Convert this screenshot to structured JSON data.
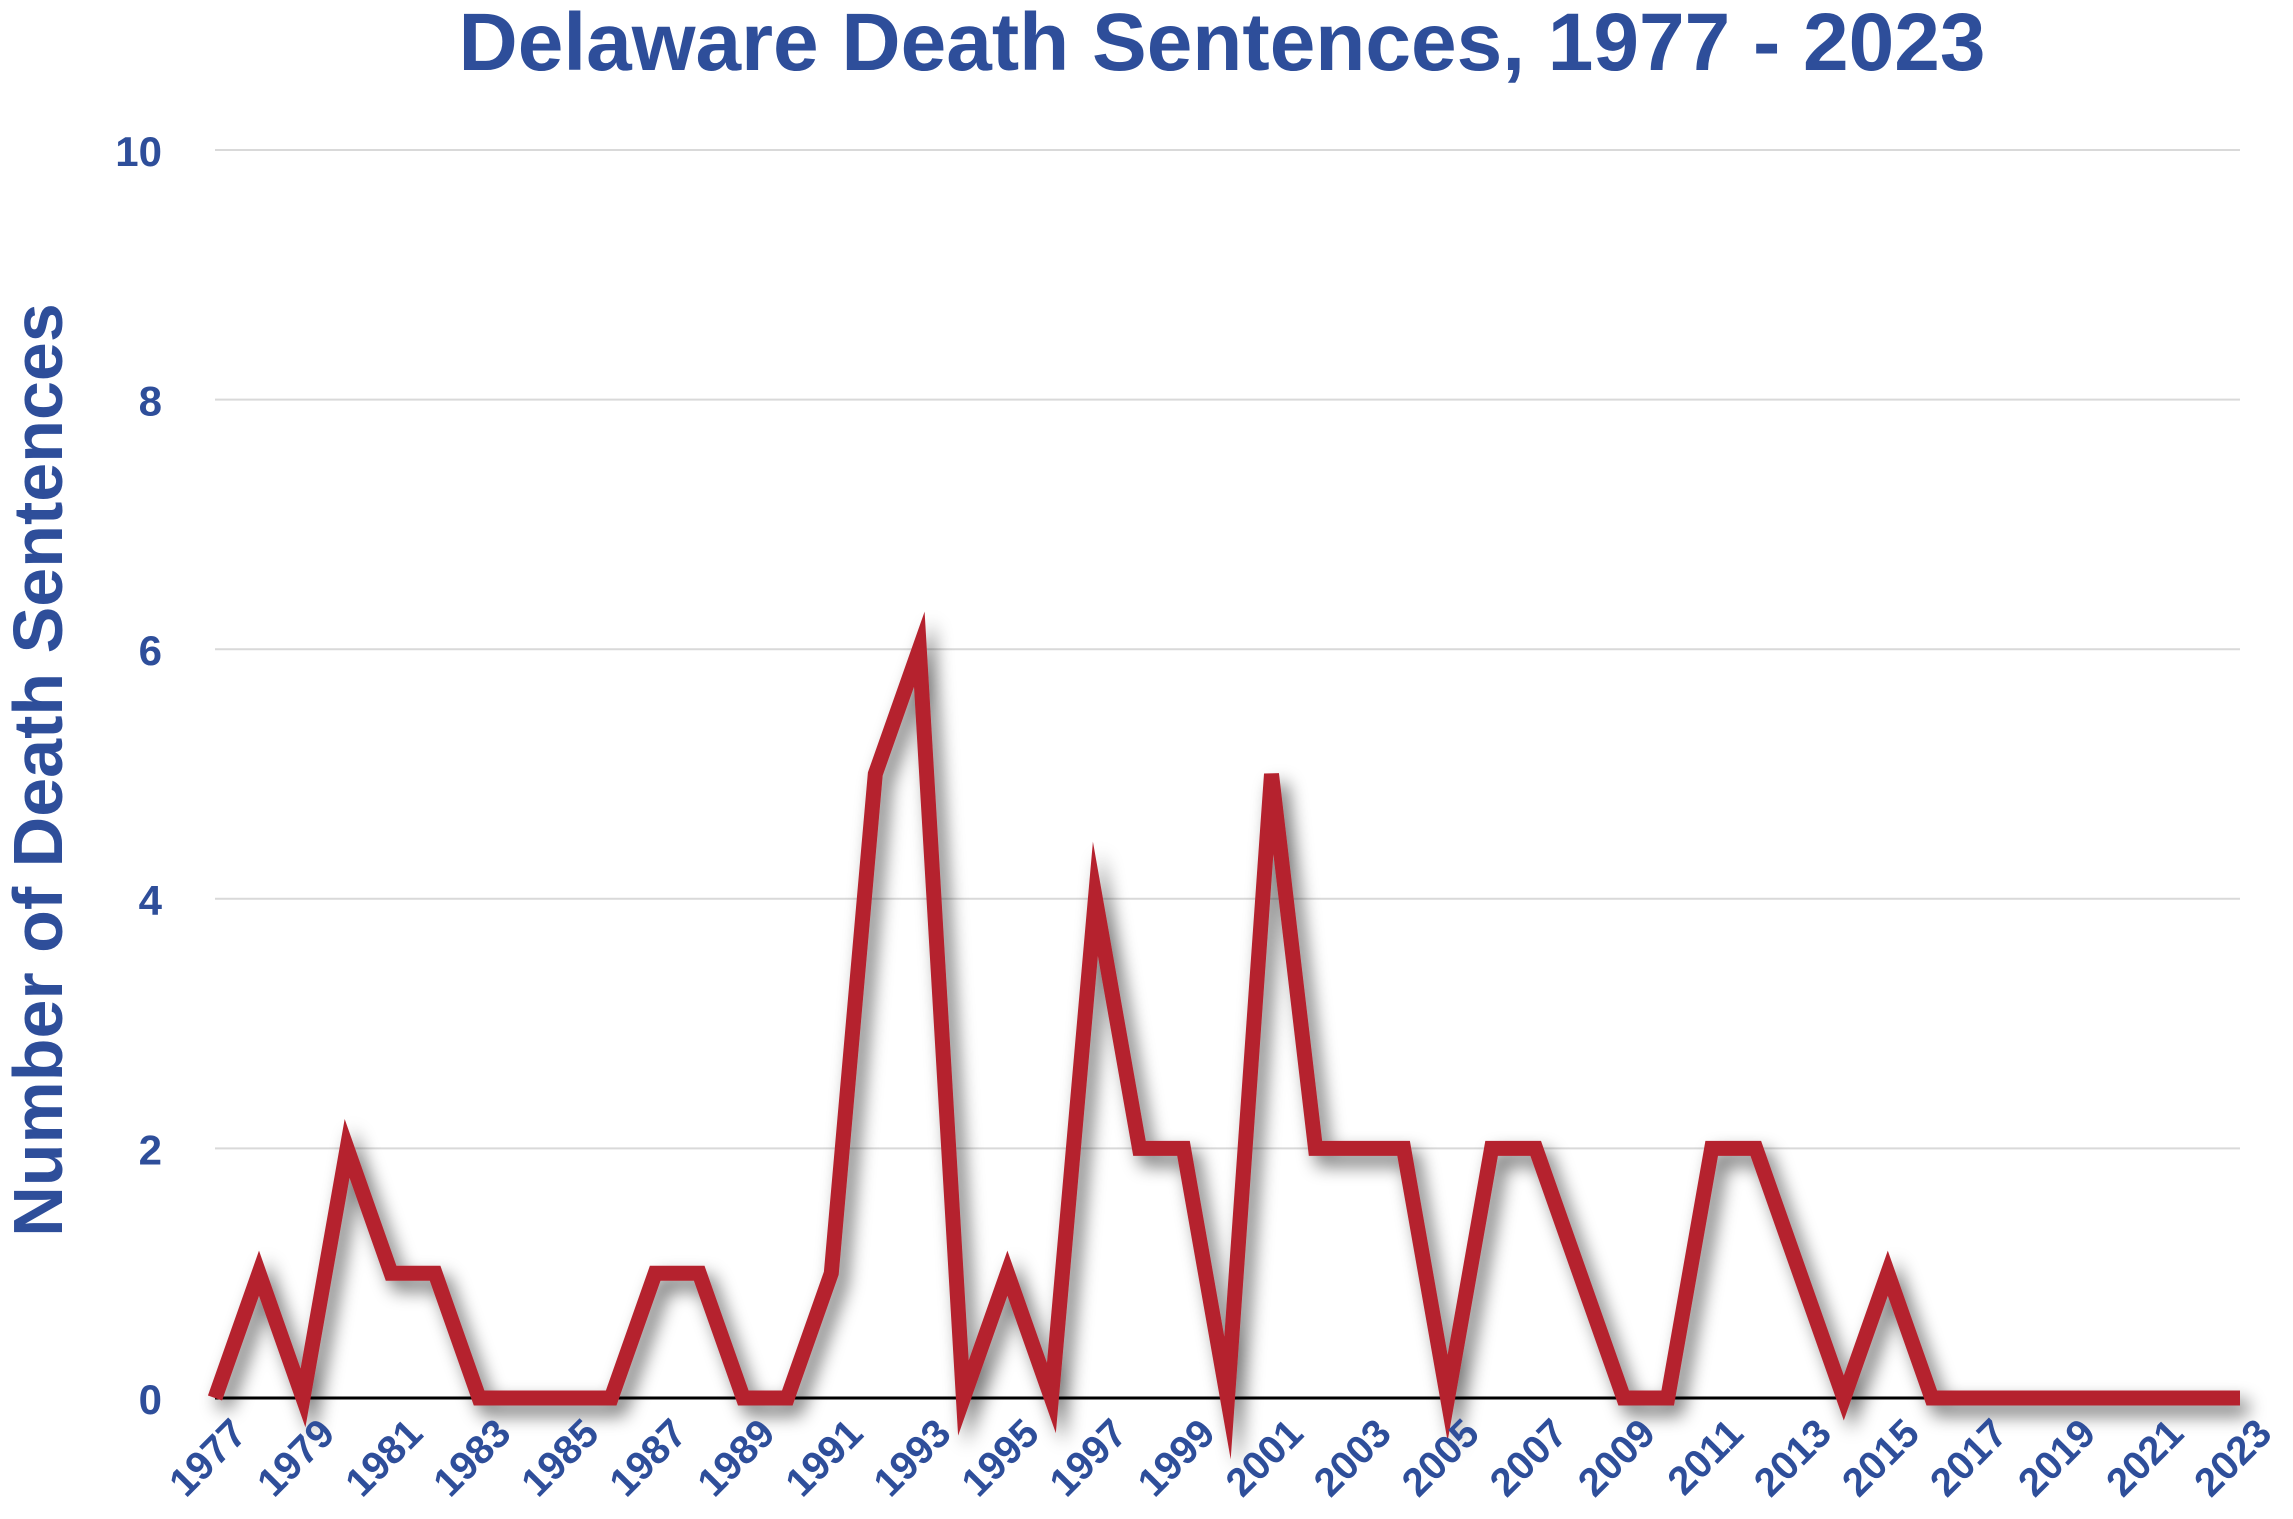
{
  "chart_data": {
    "type": "line",
    "title": "Delaware Death Sentences, 1977 - 2023",
    "xlabel": "",
    "ylabel": "Number of Death Sentences",
    "ylim": [
      0,
      10
    ],
    "yticks": [
      0,
      2,
      4,
      6,
      8,
      10
    ],
    "grid": true,
    "legend": "none",
    "colors": {
      "line": "#b5232e",
      "text": "#2e4e9a",
      "grid": "#d9d9d9",
      "baseline": "#000000"
    },
    "x": [
      1977,
      1978,
      1979,
      1980,
      1981,
      1982,
      1983,
      1984,
      1985,
      1986,
      1987,
      1988,
      1989,
      1990,
      1991,
      1992,
      1993,
      1994,
      1995,
      1996,
      1997,
      1998,
      1999,
      2000,
      2001,
      2002,
      2003,
      2004,
      2005,
      2006,
      2007,
      2008,
      2009,
      2010,
      2011,
      2012,
      2013,
      2014,
      2015,
      2016,
      2017,
      2018,
      2019,
      2020,
      2021,
      2022,
      2023
    ],
    "xtick_labels": [
      "1977",
      "1979",
      "1981",
      "1983",
      "1985",
      "1987",
      "1989",
      "1991",
      "1993",
      "1995",
      "1997",
      "1999",
      "2001",
      "2003",
      "2005",
      "2007",
      "2009",
      "2011",
      "2013",
      "2015",
      "2017",
      "2019",
      "2021",
      "2023"
    ],
    "series": [
      {
        "values": [
          0,
          1,
          0,
          2,
          1,
          1,
          0,
          0,
          0,
          0,
          1,
          1,
          0,
          0,
          1,
          5,
          6,
          0,
          1,
          0,
          4,
          2,
          2,
          0,
          5,
          2,
          2,
          2,
          0,
          2,
          2,
          1,
          0,
          0,
          2,
          2,
          1,
          0,
          1,
          0,
          0,
          0,
          0,
          0,
          0,
          0,
          0
        ]
      }
    ]
  }
}
